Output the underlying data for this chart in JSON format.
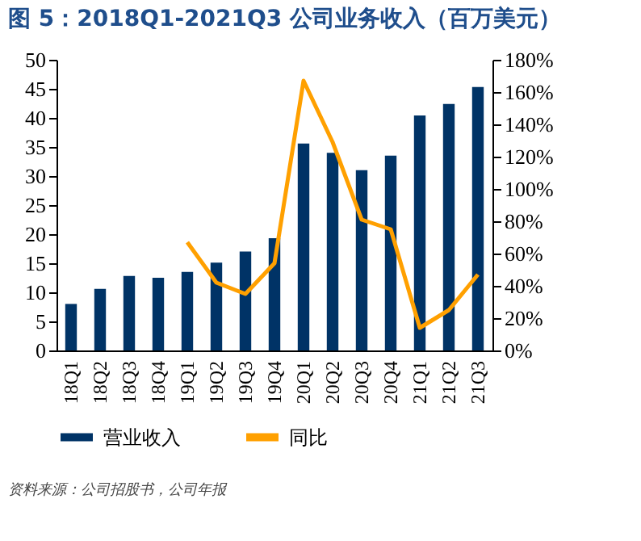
{
  "chart_data": {
    "type": "bar",
    "title": "图 5：2018Q1-2021Q3 公司业务收入（百万美元）",
    "categories": [
      "18Q1",
      "18Q2",
      "18Q3",
      "18Q4",
      "19Q1",
      "19Q2",
      "19Q3",
      "19Q4",
      "20Q1",
      "20Q2",
      "20Q3",
      "20Q4",
      "21Q1",
      "21Q2",
      "21Q3"
    ],
    "series": [
      {
        "name": "营业收入",
        "color": "#003366",
        "values": [
          8.0,
          10.6,
          12.8,
          12.5,
          13.5,
          15.1,
          17.0,
          19.3,
          35.6,
          34.0,
          31.0,
          33.5,
          40.4,
          42.4,
          45.3
        ]
      },
      {
        "name": "同比",
        "color": "#ffa000",
        "type": "line",
        "axis": "y2",
        "line_style": "solid",
        "values": [
          null,
          null,
          null,
          null,
          67,
          42,
          35,
          54,
          167,
          129,
          81,
          75,
          14,
          25,
          47
        ]
      }
    ],
    "ylim": [
      0,
      50
    ],
    "yticks": [
      0,
      5,
      10,
      15,
      20,
      25,
      30,
      35,
      40,
      45,
      50
    ],
    "y2lim": [
      0,
      180
    ],
    "y2ticks": [
      {
        "value": 0,
        "label": "0%"
      },
      {
        "value": 20,
        "label": "20%"
      },
      {
        "value": 40,
        "label": "40%"
      },
      {
        "value": 60,
        "label": "60%"
      },
      {
        "value": 80,
        "label": "80%"
      },
      {
        "value": 100,
        "label": "100%"
      },
      {
        "value": 120,
        "label": "120%"
      },
      {
        "value": 140,
        "label": "140%"
      },
      {
        "value": 160,
        "label": "160%"
      },
      {
        "value": 180,
        "label": "180%"
      }
    ],
    "grid": false,
    "legend": "bottom",
    "annotations": [
      "资料来源：公司招股书，公司年报"
    ]
  }
}
